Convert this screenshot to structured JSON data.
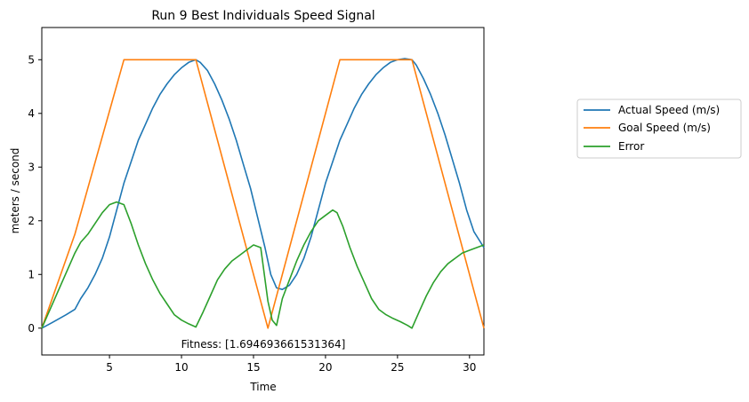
{
  "chart_data": {
    "type": "line",
    "title": "Run 9 Best Individuals Speed Signal",
    "xlabel": "Time",
    "ylabel": "meters / second",
    "xlim": [
      0.3,
      31.0
    ],
    "ylim": [
      -0.5,
      5.6
    ],
    "xticks": [
      5,
      10,
      15,
      20,
      25,
      30
    ],
    "yticks": [
      0,
      1,
      2,
      3,
      4,
      5
    ],
    "grid": false,
    "legend_position": "outside-right",
    "annotation": "Fitness: [1.694693661531364]",
    "series": [
      {
        "name": "Actual Speed (m/s)",
        "color": "#1f77b4",
        "x": [
          0.3,
          1.0,
          2.0,
          2.6,
          3.0,
          3.5,
          4.0,
          4.5,
          5.0,
          5.5,
          6.0,
          6.5,
          7.0,
          7.5,
          8.0,
          8.5,
          9.0,
          9.5,
          10.0,
          10.5,
          11.0,
          11.3,
          11.8,
          12.3,
          12.8,
          13.3,
          13.8,
          14.3,
          14.8,
          15.3,
          15.8,
          16.2,
          16.6,
          17.0,
          17.5,
          18.0,
          18.5,
          19.0,
          19.5,
          20.0,
          20.5,
          21.0,
          21.5,
          22.0,
          22.5,
          23.0,
          23.5,
          24.0,
          24.5,
          25.0,
          25.5,
          26.0,
          26.3,
          26.8,
          27.3,
          27.8,
          28.3,
          28.8,
          29.3,
          29.8,
          30.3,
          31.0
        ],
        "values": [
          0.0,
          0.1,
          0.25,
          0.35,
          0.55,
          0.75,
          1.0,
          1.3,
          1.7,
          2.2,
          2.7,
          3.1,
          3.5,
          3.8,
          4.1,
          4.35,
          4.55,
          4.72,
          4.85,
          4.95,
          5.0,
          4.95,
          4.8,
          4.55,
          4.25,
          3.9,
          3.5,
          3.05,
          2.6,
          2.05,
          1.5,
          1.0,
          0.75,
          0.72,
          0.8,
          1.0,
          1.3,
          1.7,
          2.2,
          2.7,
          3.1,
          3.5,
          3.8,
          4.1,
          4.35,
          4.55,
          4.72,
          4.85,
          4.95,
          5.0,
          5.02,
          5.0,
          4.9,
          4.65,
          4.35,
          4.0,
          3.6,
          3.15,
          2.7,
          2.2,
          1.8,
          1.5
        ]
      },
      {
        "name": "Goal Speed (m/s)",
        "color": "#ff7f0e",
        "x": [
          0.3,
          2.6,
          6.0,
          11.0,
          16.0,
          21.0,
          26.0,
          31.0
        ],
        "values": [
          0.0,
          1.75,
          5.0,
          5.0,
          0.0,
          5.0,
          5.0,
          0.0
        ]
      },
      {
        "name": "Error",
        "color": "#2ca02c",
        "x": [
          0.3,
          2.6,
          3.0,
          3.5,
          4.0,
          4.5,
          5.0,
          5.5,
          6.0,
          6.5,
          7.0,
          7.5,
          8.0,
          8.5,
          9.0,
          9.5,
          10.0,
          10.5,
          11.0,
          11.5,
          12.0,
          12.5,
          13.0,
          13.5,
          14.0,
          14.5,
          15.0,
          15.5,
          16.0,
          16.3,
          16.6,
          17.0,
          17.5,
          18.0,
          18.5,
          19.0,
          19.5,
          20.0,
          20.5,
          20.8,
          21.2,
          21.7,
          22.2,
          22.7,
          23.2,
          23.7,
          24.2,
          24.7,
          25.2,
          25.7,
          26.0,
          26.5,
          27.0,
          27.5,
          28.0,
          28.5,
          29.0,
          29.5,
          30.0,
          30.5,
          31.0
        ],
        "values": [
          0.0,
          1.4,
          1.6,
          1.75,
          1.95,
          2.15,
          2.3,
          2.35,
          2.3,
          1.95,
          1.55,
          1.2,
          0.9,
          0.65,
          0.45,
          0.25,
          0.15,
          0.08,
          0.02,
          0.3,
          0.6,
          0.9,
          1.1,
          1.25,
          1.35,
          1.45,
          1.55,
          1.5,
          0.5,
          0.15,
          0.05,
          0.55,
          0.9,
          1.25,
          1.55,
          1.8,
          2.0,
          2.1,
          2.2,
          2.15,
          1.9,
          1.5,
          1.15,
          0.85,
          0.55,
          0.35,
          0.25,
          0.18,
          0.12,
          0.05,
          0.0,
          0.3,
          0.6,
          0.85,
          1.05,
          1.2,
          1.3,
          1.4,
          1.45,
          1.5,
          1.55
        ]
      }
    ]
  }
}
